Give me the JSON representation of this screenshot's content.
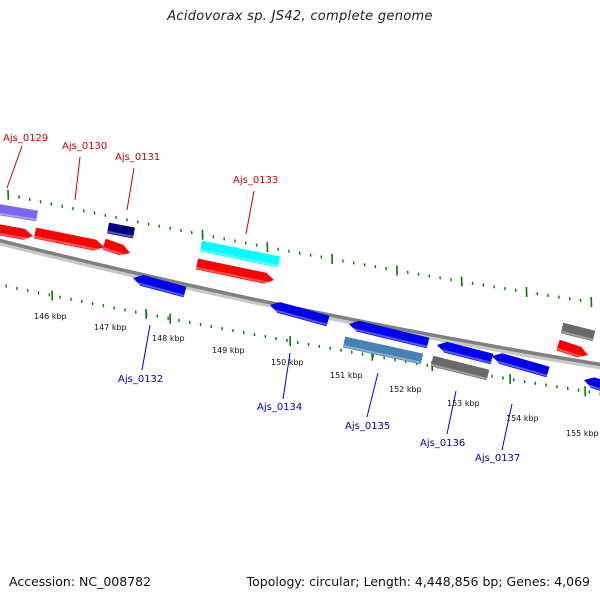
{
  "title": "Acidovorax sp. JS42, complete genome",
  "footer": {
    "accession": "Accession: NC_008782",
    "summary": "Topology: circular; Length: 4,448,856 bp; Genes: 4,069"
  },
  "colors": {
    "red": "#ff0000",
    "blue": "#0000ee",
    "navy": "#000080",
    "lightpurple": "#7b68ee",
    "cyan": "#00ffff",
    "steelblue": "#4682b4",
    "gray": "#696969",
    "tick": "#007a00",
    "backbone": "#808080"
  },
  "scale_labels": [
    "146 kbp",
    "147 kbp",
    "148 kbp",
    "149 kbp",
    "150 kbp",
    "151 kbp",
    "152 kbp",
    "153 kbp",
    "154 kbp",
    "155 kbp"
  ],
  "top_labels": [
    "Ajs_0129",
    "Ajs_0130",
    "Ajs_0131",
    "Ajs_0133"
  ],
  "bottom_labels": [
    "Ajs_0132",
    "Ajs_0134",
    "Ajs_0135",
    "Ajs_0136",
    "Ajs_0137"
  ]
}
